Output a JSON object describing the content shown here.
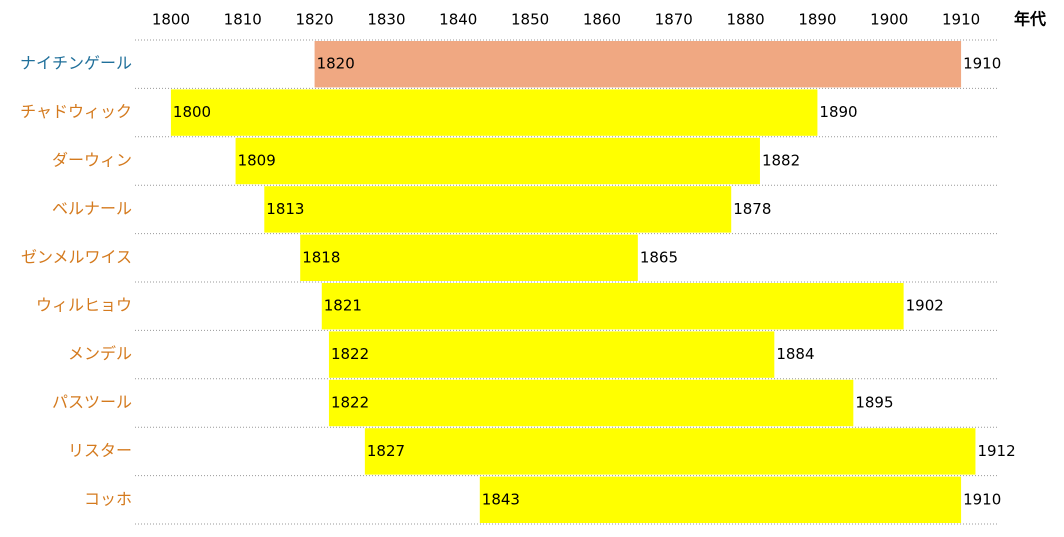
{
  "chart_data": {
    "type": "timeline",
    "x_label": "年代",
    "categories": [
      "ナイチンゲール",
      "チャドウィック",
      "ダーウィン",
      "ベルナール",
      "ゼンメルワイス",
      "ウィルヒョウ",
      "メンデル",
      "パスツール",
      "リスター",
      "コッホ"
    ],
    "start": [
      1820,
      1800,
      1809,
      1813,
      1818,
      1821,
      1822,
      1822,
      1827,
      1843
    ],
    "end": [
      1910,
      1890,
      1882,
      1878,
      1865,
      1902,
      1884,
      1895,
      1912,
      1910
    ],
    "bar_colors": [
      "#f0a882",
      "#ffff00",
      "#ffff00",
      "#ffff00",
      "#ffff00",
      "#ffff00",
      "#ffff00",
      "#ffff00",
      "#ffff00",
      "#ffff00"
    ],
    "label_colors": [
      "#1f6f9a",
      "#d47a1e",
      "#d47a1e",
      "#d47a1e",
      "#d47a1e",
      "#d47a1e",
      "#d47a1e",
      "#d47a1e",
      "#d47a1e",
      "#d47a1e"
    ],
    "xlim": [
      1795,
      1915
    ],
    "xticks": [
      1800,
      1810,
      1820,
      1830,
      1840,
      1850,
      1860,
      1870,
      1880,
      1890,
      1900,
      1910
    ]
  }
}
